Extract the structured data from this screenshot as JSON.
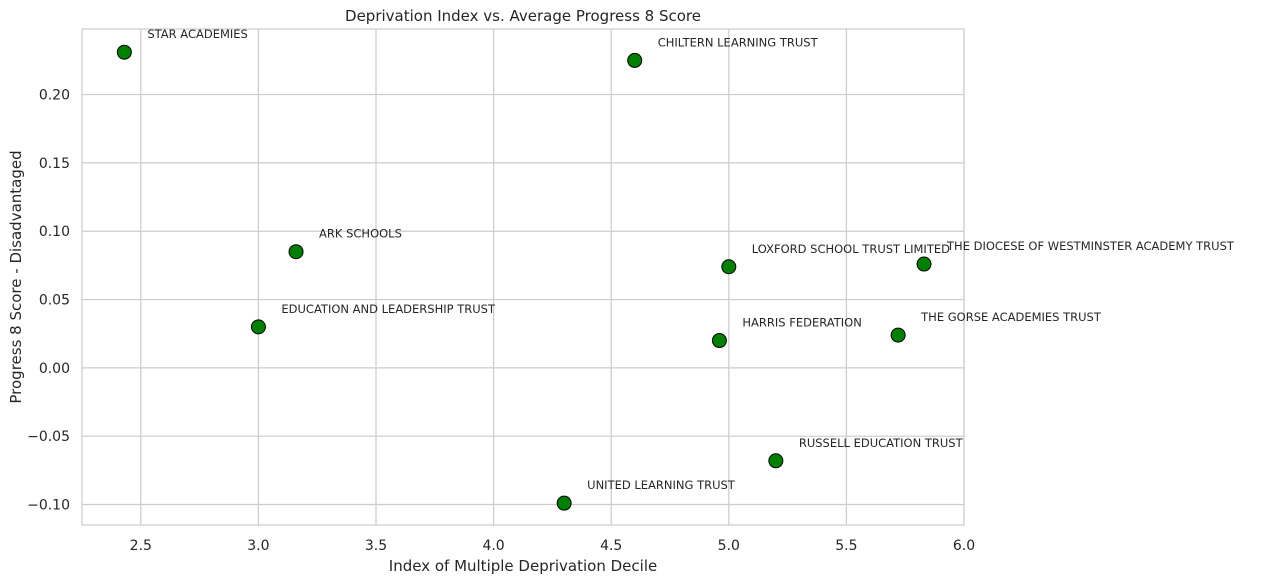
{
  "chart_data": {
    "type": "scatter",
    "title": "Deprivation Index vs. Average Progress 8 Score",
    "xlabel": "Index of Multiple Deprivation Decile",
    "ylabel": "Progress 8 Score - Disadvantaged",
    "xlim": [
      2.25,
      6.0
    ],
    "ylim": [
      -0.115,
      0.248
    ],
    "x_ticks": [
      2.5,
      3.0,
      3.5,
      4.0,
      4.5,
      5.0,
      5.5,
      6.0
    ],
    "x_tick_labels": [
      "2.5",
      "3.0",
      "3.5",
      "4.0",
      "4.5",
      "5.0",
      "5.5",
      "6.0"
    ],
    "y_ticks": [
      -0.1,
      -0.05,
      0.0,
      0.05,
      0.1,
      0.15,
      0.2
    ],
    "y_tick_labels": [
      "−0.10",
      "−0.05",
      "0.00",
      "0.05",
      "0.10",
      "0.15",
      "0.20"
    ],
    "grid": true,
    "marker_color": "#008000",
    "marker_edge_color": "#000000",
    "points": [
      {
        "label": "STAR ACADEMIES",
        "x": 2.43,
        "y": 0.231
      },
      {
        "label": "CHILTERN LEARNING TRUST",
        "x": 4.6,
        "y": 0.225
      },
      {
        "label": "ARK SCHOOLS",
        "x": 3.16,
        "y": 0.085
      },
      {
        "label": "EDUCATION AND LEADERSHIP TRUST",
        "x": 3.0,
        "y": 0.03
      },
      {
        "label": "LOXFORD SCHOOL TRUST LIMITED",
        "x": 5.0,
        "y": 0.074
      },
      {
        "label": "THE DIOCESE OF WESTMINSTER ACADEMY TRUST",
        "x": 5.83,
        "y": 0.076
      },
      {
        "label": "HARRIS FEDERATION",
        "x": 4.96,
        "y": 0.02
      },
      {
        "label": "THE GORSE ACADEMIES TRUST",
        "x": 5.72,
        "y": 0.024
      },
      {
        "label": "RUSSELL EDUCATION TRUST",
        "x": 5.2,
        "y": -0.068
      },
      {
        "label": "UNITED LEARNING TRUST",
        "x": 4.3,
        "y": -0.099
      }
    ]
  }
}
